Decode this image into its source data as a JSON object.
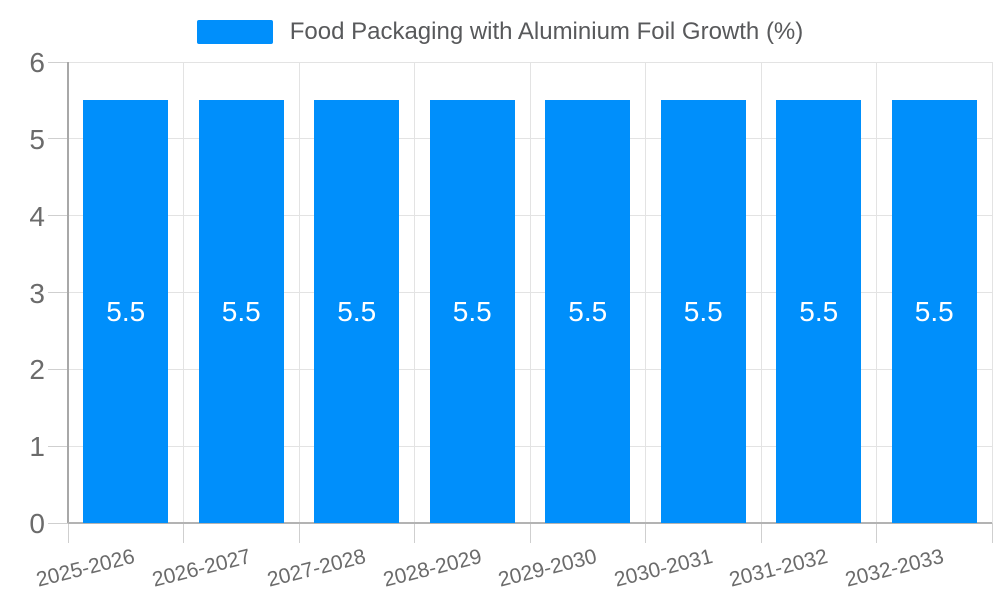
{
  "chart_data": {
    "type": "bar",
    "title": "Food Packaging with Aluminium Foil Growth (%)",
    "categories": [
      "2025-2026",
      "2026-2027",
      "2027-2028",
      "2028-2029",
      "2029-2030",
      "2030-2031",
      "2031-2032",
      "2032-2033"
    ],
    "series": [
      {
        "name": "Food Packaging with Aluminium Foil Growth (%)",
        "values": [
          5.5,
          5.5,
          5.5,
          5.5,
          5.5,
          5.5,
          5.5,
          5.5
        ]
      }
    ],
    "value_labels": [
      "5.5",
      "5.5",
      "5.5",
      "5.5",
      "5.5",
      "5.5",
      "5.5",
      "5.5"
    ],
    "xlabel": "",
    "ylabel": "",
    "ylim": [
      0,
      6
    ],
    "yticks": [
      0,
      1,
      2,
      3,
      4,
      5,
      6
    ],
    "grid": true,
    "legend_position": "top",
    "colors": {
      "bar": "#008FFB",
      "bar_label": "#ffffff",
      "grid": "#e3e3e3",
      "tick": "#cfcfcf",
      "axis": "#a8a8a8",
      "baseline": "#b3b3b3",
      "axis_text": "#6b6b6b",
      "legend_text": "#58595b"
    }
  }
}
